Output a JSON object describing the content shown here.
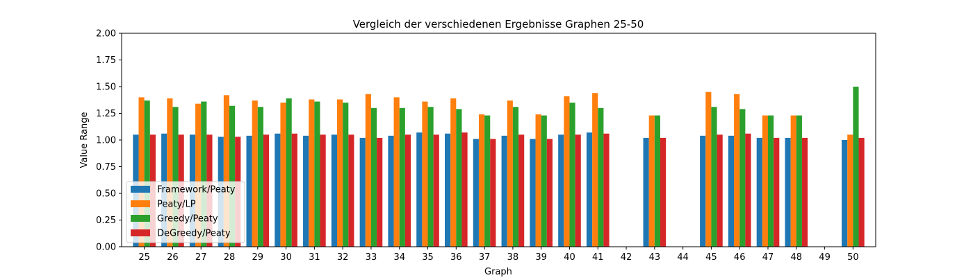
{
  "chart_data": {
    "type": "bar",
    "title": "Vergleich der verschiedenen Ergebnisse Graphen 25-50",
    "xlabel": "Graph",
    "ylabel": "Value Range",
    "ylim": [
      0,
      2
    ],
    "yticks": [
      "0.00",
      "0.25",
      "0.50",
      "0.75",
      "1.00",
      "1.25",
      "1.50",
      "1.75",
      "2.00"
    ],
    "grid": false,
    "legend_position": "lower-left",
    "categories": [
      "25",
      "26",
      "27",
      "28",
      "29",
      "30",
      "31",
      "32",
      "33",
      "34",
      "35",
      "36",
      "37",
      "38",
      "39",
      "40",
      "41",
      "42",
      "43",
      "44",
      "45",
      "46",
      "47",
      "48",
      "49",
      "50"
    ],
    "series": [
      {
        "name": "Framework/Peaty",
        "color": "#1f77b4",
        "values": [
          1.05,
          1.06,
          1.05,
          1.03,
          1.04,
          1.06,
          1.04,
          1.05,
          1.02,
          1.04,
          1.07,
          1.06,
          1.01,
          1.04,
          1.01,
          1.05,
          1.07,
          null,
          1.02,
          null,
          1.04,
          1.04,
          1.02,
          1.02,
          null,
          1.0
        ]
      },
      {
        "name": "Peaty/LP",
        "color": "#ff7f0e",
        "values": [
          1.4,
          1.39,
          1.34,
          1.42,
          1.37,
          1.35,
          1.38,
          1.38,
          1.43,
          1.4,
          1.36,
          1.39,
          1.24,
          1.37,
          1.24,
          1.41,
          1.44,
          null,
          1.23,
          null,
          1.45,
          1.43,
          1.23,
          1.23,
          null,
          1.05
        ]
      },
      {
        "name": "Greedy/Peaty",
        "color": "#2ca02c",
        "values": [
          1.37,
          1.31,
          1.36,
          1.32,
          1.31,
          1.39,
          1.36,
          1.35,
          1.3,
          1.3,
          1.31,
          1.29,
          1.23,
          1.31,
          1.23,
          1.35,
          1.3,
          null,
          1.23,
          null,
          1.31,
          1.29,
          1.23,
          1.23,
          null,
          1.5
        ]
      },
      {
        "name": "DeGreedy/Peaty",
        "color": "#d62728",
        "values": [
          1.05,
          1.05,
          1.05,
          1.03,
          1.05,
          1.06,
          1.05,
          1.05,
          1.02,
          1.05,
          1.05,
          1.07,
          1.01,
          1.05,
          1.01,
          1.05,
          1.06,
          null,
          1.02,
          null,
          1.05,
          1.06,
          1.02,
          1.02,
          null,
          1.02
        ]
      }
    ]
  }
}
